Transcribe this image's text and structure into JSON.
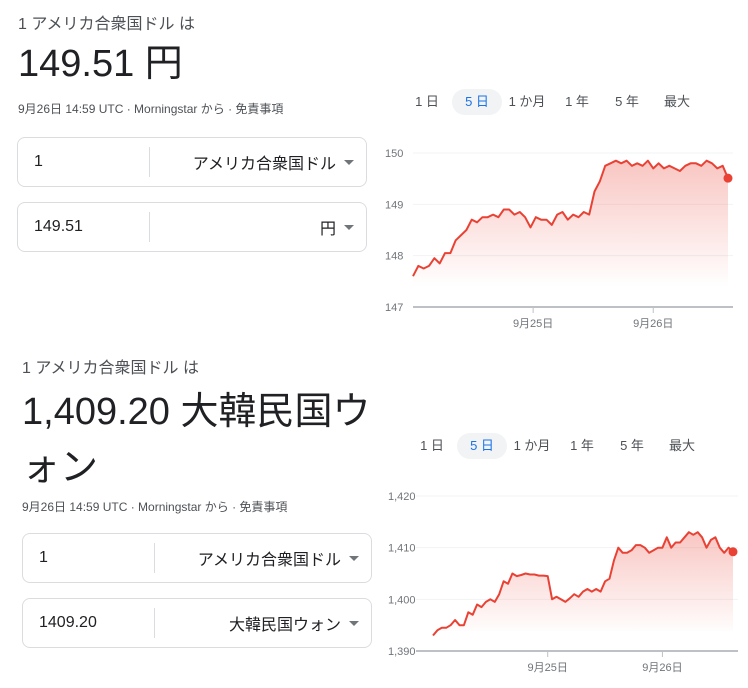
{
  "colors": {
    "line": "#e94235",
    "active_tab": "#1a73e8"
  },
  "tabs": [
    "1 日",
    "5 日",
    "1 か月",
    "1 年",
    "5 年",
    "最大"
  ],
  "active_tab": "5 日",
  "blocks": [
    {
      "subtitle": "1 アメリカ合衆国ドル は",
      "result": "149.51 円",
      "meta": "9月26日 14:59 UTC · Morningstar から · 免責事項",
      "from": {
        "value": "1",
        "currency": "アメリカ合衆国ドル"
      },
      "to": {
        "value": "149.51",
        "currency": "円"
      }
    },
    {
      "subtitle": "1 アメリカ合衆国ドル は",
      "result": "1,409.20 大韓民国ウォン",
      "meta": "9月26日 14:59 UTC · Morningstar から · 免責事項",
      "from": {
        "value": "1",
        "currency": "アメリカ合衆国ドル"
      },
      "to": {
        "value": "1409.20",
        "currency": "大韓民国ウォン"
      }
    }
  ],
  "chart_data": [
    {
      "type": "area",
      "ylim": [
        147,
        150
      ],
      "yticks": [
        "147",
        "148",
        "149",
        "150"
      ],
      "ytick_values": [
        147,
        148,
        149,
        150
      ],
      "xticks": [
        {
          "label": "9月25日",
          "index": 22.5
        },
        {
          "label": "9月26日",
          "index": 45
        }
      ],
      "grid": true,
      "values": [
        147.6,
        147.8,
        147.75,
        147.8,
        147.95,
        147.85,
        148.05,
        148.05,
        148.3,
        148.4,
        148.5,
        148.7,
        148.65,
        148.75,
        148.75,
        148.8,
        148.75,
        148.9,
        148.9,
        148.8,
        148.85,
        148.75,
        148.55,
        148.75,
        148.7,
        148.7,
        148.6,
        148.8,
        148.85,
        148.7,
        148.8,
        148.75,
        148.85,
        148.8,
        149.25,
        149.45,
        149.75,
        149.8,
        149.85,
        149.8,
        149.85,
        149.75,
        149.8,
        149.75,
        149.85,
        149.7,
        149.8,
        149.7,
        149.75,
        149.7,
        149.65,
        149.75,
        149.8,
        149.8,
        149.75,
        149.85,
        149.8,
        149.7,
        149.75,
        149.51
      ]
    },
    {
      "type": "area",
      "ylim": [
        1390,
        1420
      ],
      "yticks": [
        "1,390",
        "1,400",
        "1,410",
        "1,420"
      ],
      "ytick_values": [
        1390,
        1400,
        1410,
        1420
      ],
      "xticks": [
        {
          "label": "9月25日",
          "index": 26
        },
        {
          "label": "9月26日",
          "index": 52
        }
      ],
      "grid": true,
      "values": [
        1393,
        1394,
        1394.5,
        1394.5,
        1395,
        1396,
        1395,
        1395,
        1397.5,
        1397,
        1399,
        1398.5,
        1399.5,
        1400,
        1399.5,
        1401,
        1403.5,
        1403,
        1405,
        1404.5,
        1404.7,
        1405,
        1404.8,
        1404.8,
        1404.6,
        1404.6,
        1404.5,
        1400,
        1400.5,
        1400,
        1399.5,
        1400.2,
        1401,
        1400.5,
        1401.5,
        1402,
        1401.5,
        1402,
        1401.5,
        1403.5,
        1404,
        1407.5,
        1410,
        1409,
        1409,
        1409.5,
        1410.5,
        1410.5,
        1410,
        1409,
        1409.5,
        1410,
        1410,
        1412,
        1410,
        1411,
        1411,
        1412,
        1413,
        1412.5,
        1413,
        1412,
        1410,
        1411.5,
        1412,
        1410,
        1409,
        1410,
        1409.2
      ]
    }
  ]
}
